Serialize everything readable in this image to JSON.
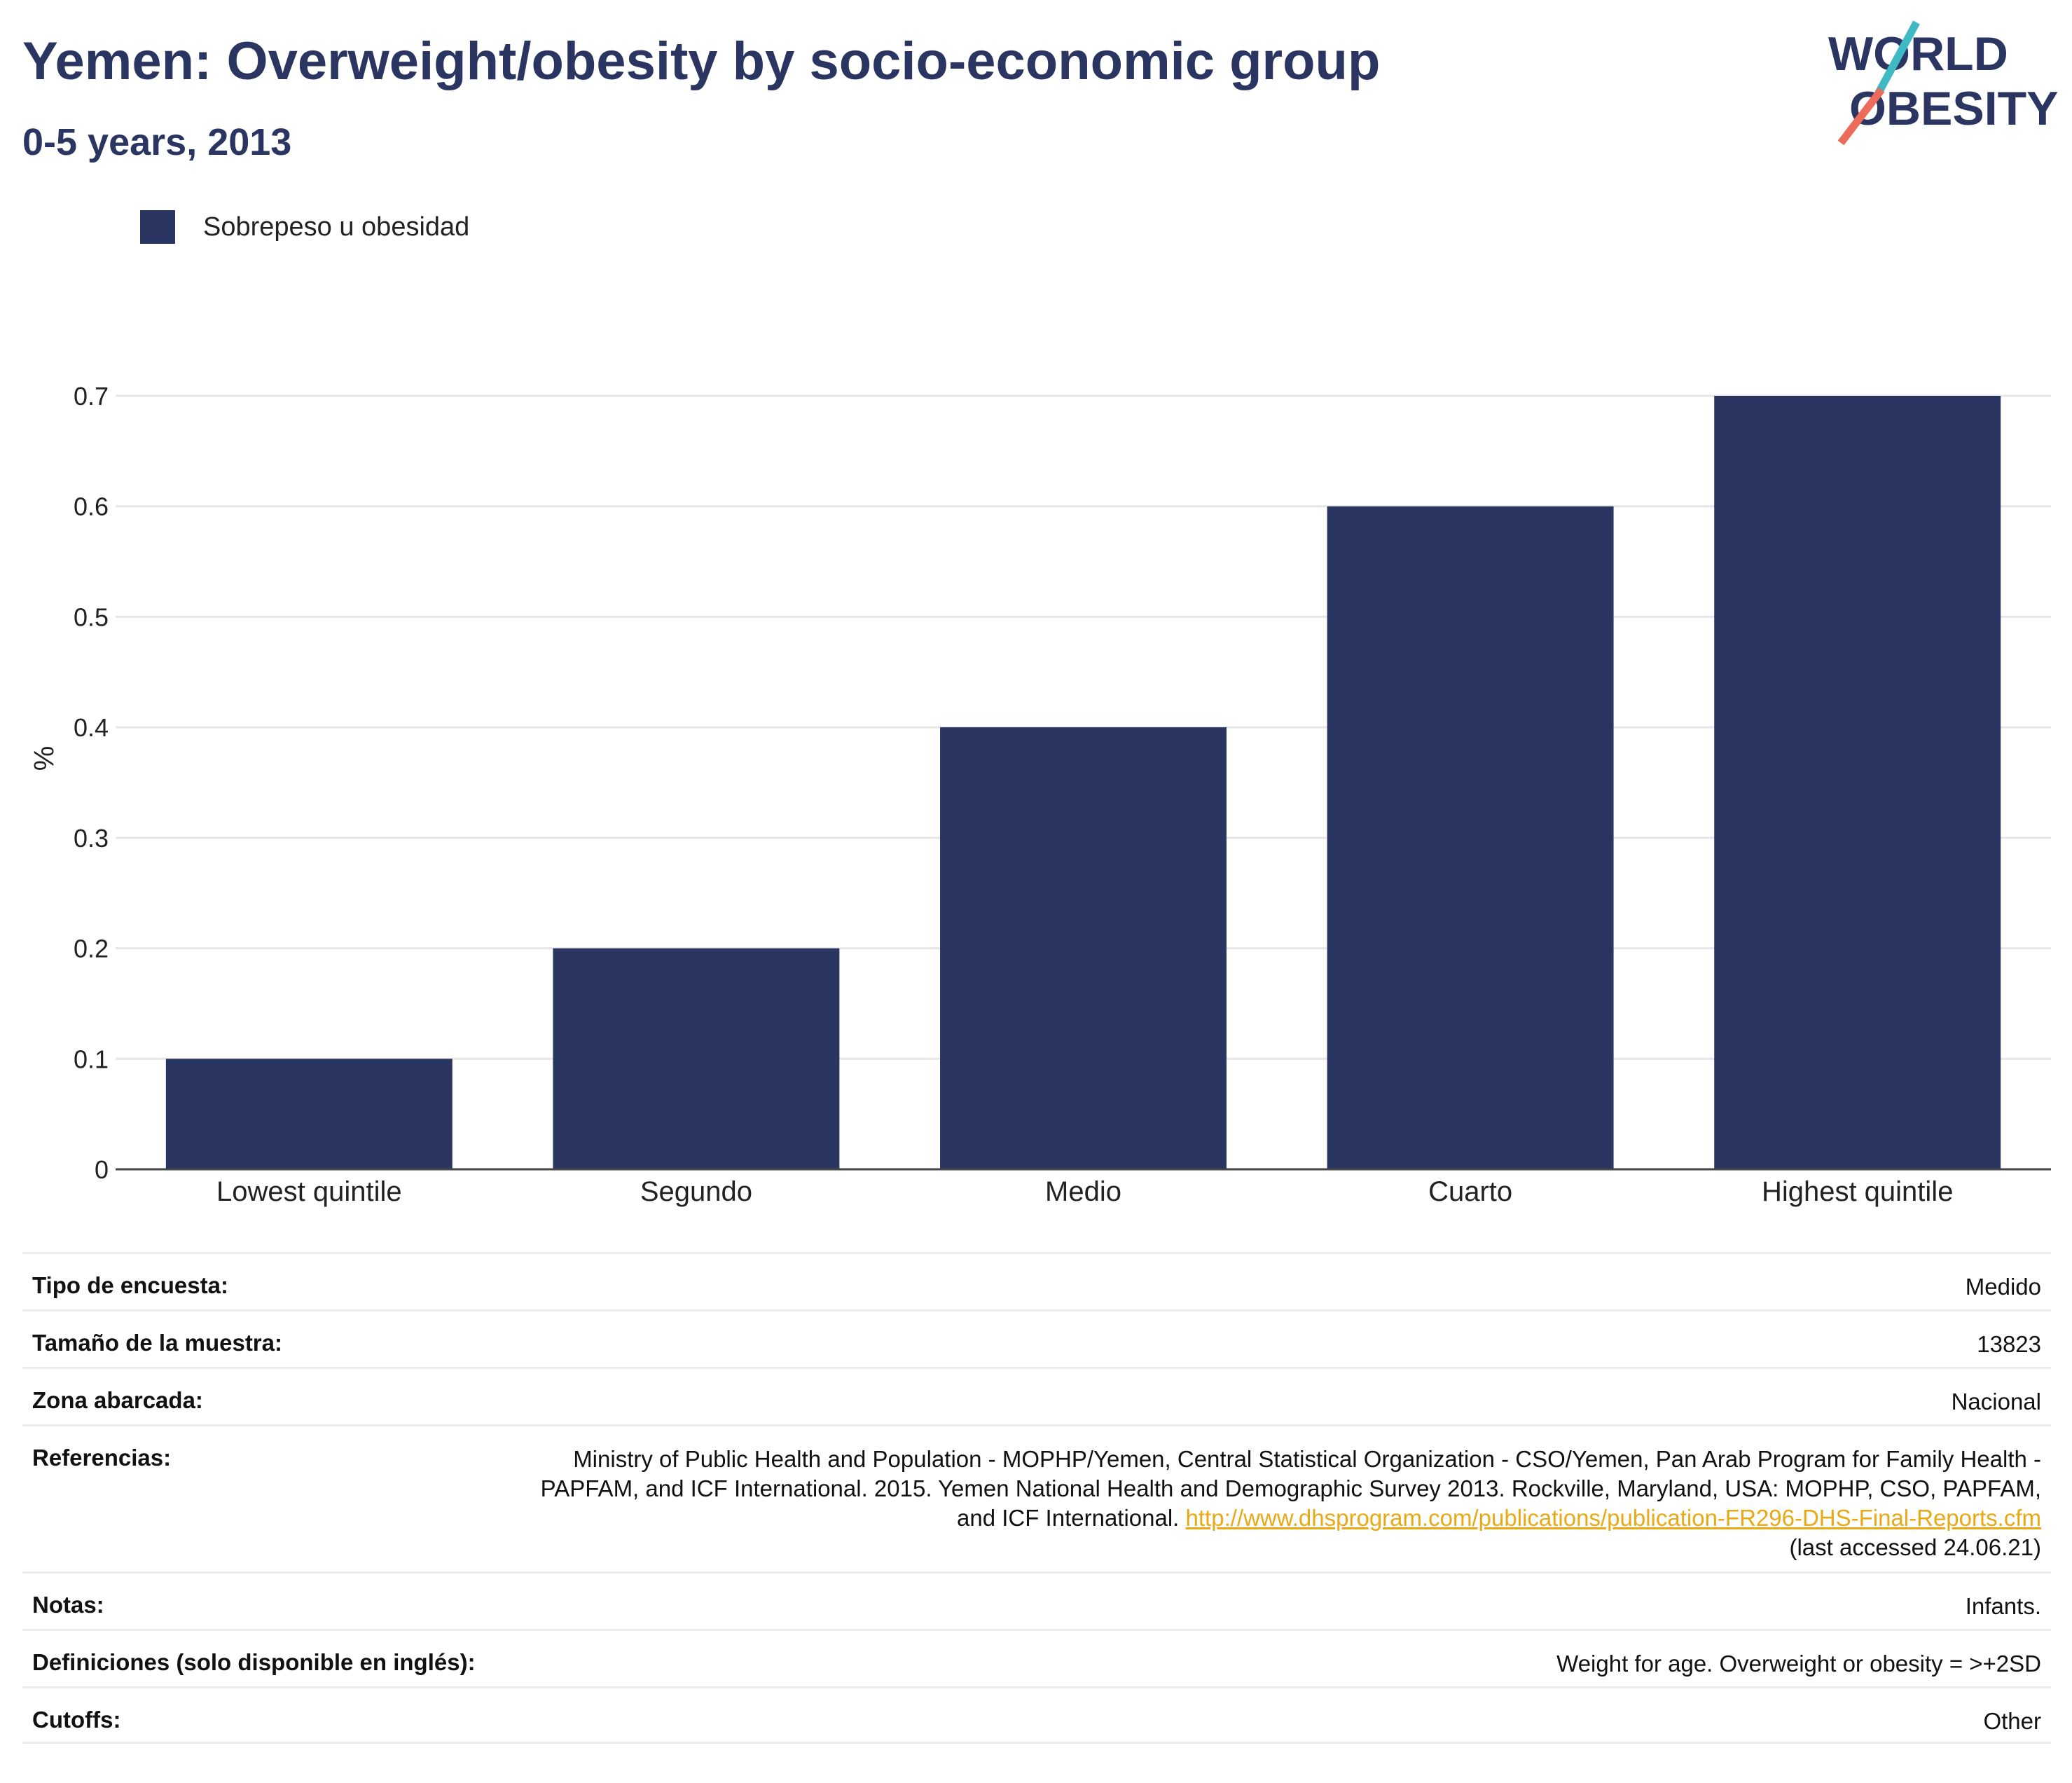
{
  "header": {
    "title": "Yemen: Overweight/obesity by socio-economic group",
    "subtitle": "0-5 years, 2013"
  },
  "logo": {
    "line1": "WORLD",
    "line2": "OBESITY"
  },
  "colors": {
    "bar": "#2b3561",
    "title": "#2b3561",
    "link": "#e8a914",
    "logo_teal": "#3fb9c4",
    "logo_coral": "#ec6b5a"
  },
  "chart_data": {
    "type": "bar",
    "categories": [
      "Lowest quintile",
      "Segundo",
      "Medio",
      "Cuarto",
      "Highest quintile"
    ],
    "series": [
      {
        "name": "Sobrepeso u obesidad",
        "values": [
          0.1,
          0.2,
          0.4,
          0.6,
          0.7
        ]
      }
    ],
    "ylabel": "%",
    "yticks": [
      "0",
      "0.1",
      "0.2",
      "0.3",
      "0.4",
      "0.5",
      "0.6",
      "0.7"
    ],
    "ylim": [
      0,
      0.7
    ],
    "grid": true,
    "legend": "top-left"
  },
  "info": {
    "survey_type": {
      "label": "Tipo de encuesta:",
      "value": "Medido"
    },
    "sample_size": {
      "label": "Tamaño de la muestra:",
      "value": "13823"
    },
    "area": {
      "label": "Zona abarcada:",
      "value": "Nacional"
    },
    "references": {
      "label": "Referencias:",
      "text": "Ministry of Public Health and Population - MOPHP/Yemen, Central Statistical Organization - CSO/Yemen, Pan Arab Program for Family Health - PAPFAM, and ICF International. 2015. Yemen National Health and Demographic Survey 2013. Rockville, Maryland, USA: MOPHP, CSO, PAPFAM, and ICF International.",
      "link": "http://www.dhsprogram.com/publications/publication-FR296-DHS-Final-Reports.cfm",
      "accessed": "(last accessed 24.06.21)"
    },
    "notes": {
      "label": "Notas:",
      "value": "Infants."
    },
    "definitions": {
      "label": "Definiciones (solo disponible en inglés):",
      "value": "Weight for age. Overweight or obesity = >+2SD"
    },
    "cutoffs": {
      "label": "Cutoffs:",
      "value": "Other"
    }
  }
}
